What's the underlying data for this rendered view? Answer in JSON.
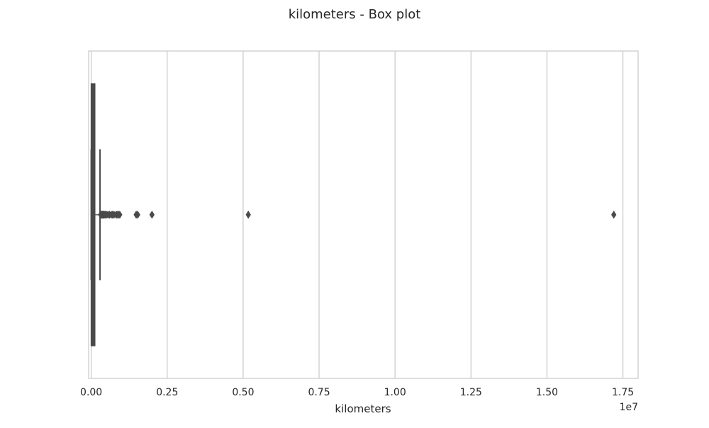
{
  "chart_data": {
    "type": "box",
    "title": "kilometers - Box plot",
    "xlabel": "kilometers",
    "ylabel": "",
    "orientation": "horizontal",
    "x_scale_multiplier_label": "1e7",
    "x_scale_multiplier": 10000000,
    "xlim": [
      -0.0085,
      1.8
    ],
    "ticks": [
      0.0,
      0.25,
      0.5,
      0.75,
      1.0,
      1.25,
      1.5,
      1.75
    ],
    "tick_labels": [
      "0.00",
      "0.25",
      "0.50",
      "0.75",
      "1.00",
      "1.25",
      "1.50",
      "1.75"
    ],
    "grid": true,
    "box": {
      "q1": 0.0,
      "median": 0.005,
      "q3": 0.012,
      "whisker_low": 0.0,
      "whisker_high": 0.029
    },
    "outliers": [
      0.031,
      0.033,
      0.035,
      0.037,
      0.039,
      0.041,
      0.043,
      0.046,
      0.05,
      0.055,
      0.06,
      0.066,
      0.07,
      0.075,
      0.082,
      0.085,
      0.09,
      0.094,
      0.148,
      0.153,
      0.2,
      0.517,
      1.72
    ],
    "colors": {
      "box": "#4a4a4a",
      "grid": "#cccccc",
      "frame": "#cccccc",
      "text": "#262626"
    }
  }
}
